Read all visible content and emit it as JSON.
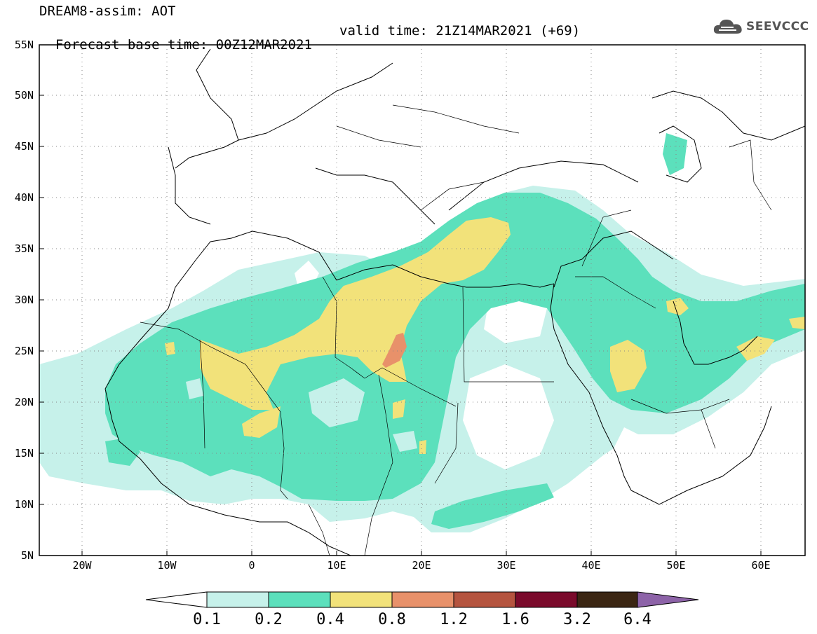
{
  "title": {
    "line1": "DREAM8-assim: AOT",
    "line2_left": "Forecast base time: 00Z12MAR2021",
    "line2_right": "valid time: 21Z14MAR2021 (+69)"
  },
  "logo": {
    "text": "SEEVCCC",
    "icon": "cloud-icon"
  },
  "map": {
    "lat_labels": [
      "55N",
      "50N",
      "45N",
      "40N",
      "35N",
      "30N",
      "25N",
      "20N",
      "15N",
      "10N",
      "5N"
    ],
    "lon_labels": [
      "20W",
      "10W",
      "0",
      "10E",
      "20E",
      "30E",
      "40E",
      "50E",
      "60E"
    ],
    "lon_range": [
      -25,
      65
    ],
    "lat_range": [
      5,
      55
    ],
    "grid": "dotted"
  },
  "colorbar": {
    "labels": [
      "0.1",
      "0.2",
      "0.4",
      "0.8",
      "1.2",
      "1.6",
      "3.2",
      "6.4"
    ],
    "colors": [
      "#c6f1ea",
      "#5ce0bc",
      "#f2e27a",
      "#e8916a",
      "#b5543f",
      "#7a0a2b",
      "#3b2613",
      "#8d63a8"
    ]
  }
}
